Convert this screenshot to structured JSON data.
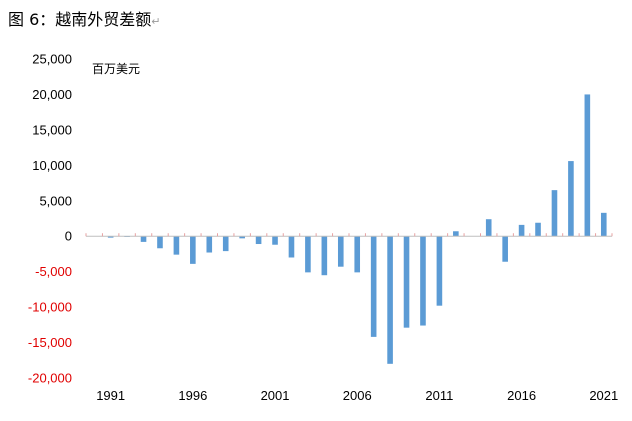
{
  "figure": {
    "title": "图 6：越南外贸差额",
    "title_mark": "↵"
  },
  "chart_data": {
    "type": "bar",
    "unit_label": "百万美元",
    "x": [
      1990,
      1991,
      1992,
      1993,
      1994,
      1995,
      1996,
      1997,
      1998,
      1999,
      2000,
      2001,
      2002,
      2003,
      2004,
      2005,
      2006,
      2007,
      2008,
      2009,
      2010,
      2011,
      2012,
      2013,
      2014,
      2015,
      2016,
      2017,
      2018,
      2019,
      2020,
      2021
    ],
    "values": [
      0,
      -200,
      -100,
      -800,
      -1700,
      -2600,
      -3900,
      -2300,
      -2100,
      -300,
      -1100,
      -1200,
      -3000,
      -5100,
      -5500,
      -4300,
      -5100,
      -14200,
      -18000,
      -12900,
      -12600,
      -9800,
      700,
      0,
      2400,
      -3600,
      1600,
      1900,
      6500,
      10600,
      20000,
      3300
    ],
    "x_tick_labels": [
      "1991",
      "1996",
      "2001",
      "2006",
      "2011",
      "2016",
      "2021"
    ],
    "y_ticks": [
      25000,
      20000,
      15000,
      10000,
      5000,
      0,
      -5000,
      -10000,
      -15000,
      -20000
    ],
    "y_tick_labels": [
      "25,000",
      "20,000",
      "15,000",
      "10,000",
      "5,000",
      "0",
      "-5,000",
      "-10,000",
      "-15,000",
      "-20,000"
    ],
    "ylim": [
      -20000,
      25000
    ],
    "grid": false,
    "legend": "none",
    "colors": {
      "bar": "#5b9bd5",
      "positive_tick_text": "#000000",
      "negative_tick_text": "#e00000",
      "zero_line": "#bfbfbf",
      "minor_tick": "#e7a0a0"
    }
  }
}
